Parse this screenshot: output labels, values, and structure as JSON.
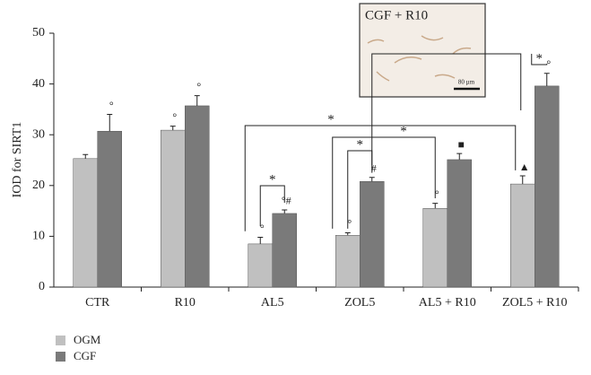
{
  "chart_data": {
    "type": "bar",
    "y_label": "IOD for SIRT1",
    "categories": [
      "CTR",
      "R10",
      "AL5",
      "ZOL5",
      "AL5 + R10",
      "ZOL5 + R10"
    ],
    "series": [
      {
        "name": "OGM",
        "color": "#c0c0c0",
        "values": [
          25.3,
          30.9,
          8.5,
          10.2,
          15.5,
          20.3
        ],
        "errors": [
          0.8,
          0.8,
          1.3,
          0.5,
          1.0,
          1.6
        ],
        "markers": [
          null,
          "°",
          "°",
          "°",
          "°",
          "▲"
        ]
      },
      {
        "name": "CGF",
        "color": "#7a7a7a",
        "values": [
          30.7,
          35.7,
          14.5,
          20.8,
          25.1,
          39.6
        ],
        "errors": [
          3.3,
          2.0,
          0.7,
          0.8,
          1.2,
          2.5
        ],
        "markers": [
          "°",
          "°",
          "°#",
          "#",
          "■",
          "°"
        ]
      }
    ],
    "comparison_labels": [
      "*",
      "*",
      "*",
      "*",
      "*",
      "*"
    ],
    "ylim": [
      0,
      50
    ],
    "yticks": [
      0,
      10,
      20,
      30,
      40,
      50
    ],
    "inset": {
      "title": "CGF + R10",
      "scale_label": "80 µm"
    }
  }
}
